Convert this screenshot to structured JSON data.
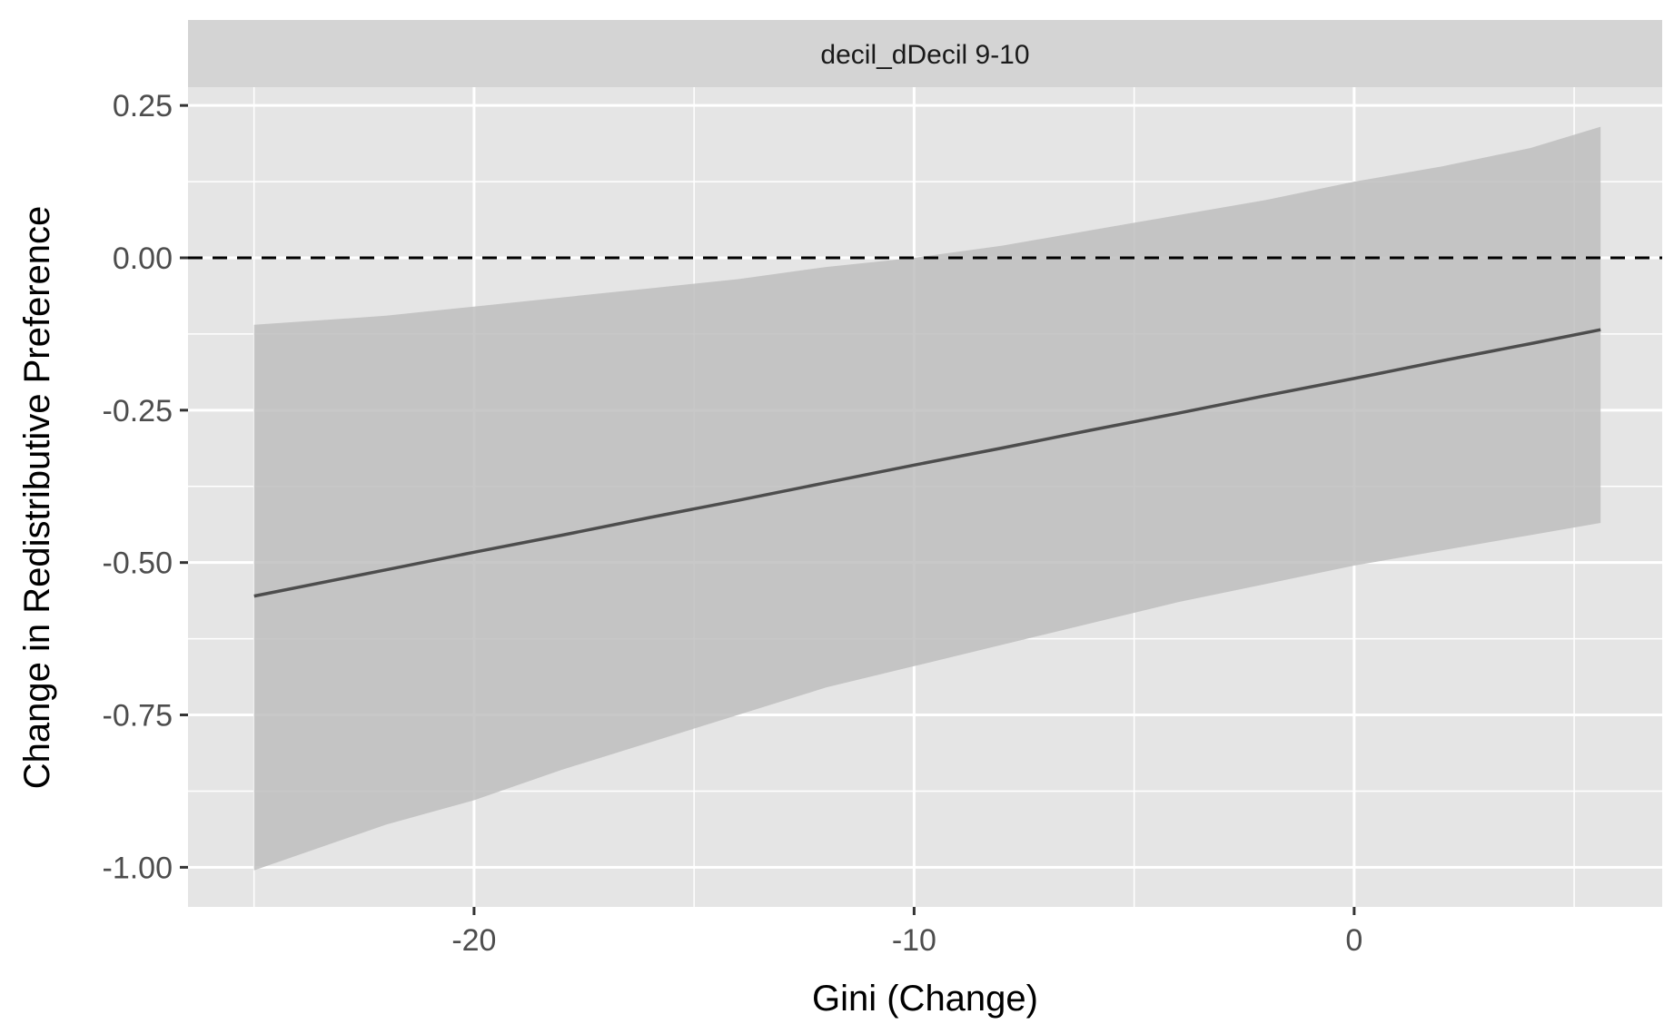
{
  "chart_data": {
    "type": "line",
    "panel_label": "decil_dDecil 9-10",
    "xlabel": "Gini (Change)",
    "ylabel": "Change in Redistributive Preference",
    "xlim": [
      -26.5,
      7
    ],
    "ylim": [
      -1.065,
      0.28
    ],
    "x_ticks": [
      -20,
      -10,
      0
    ],
    "x_tick_labels": [
      "-20",
      "-10",
      "0"
    ],
    "x_minor_ticks": [
      -25,
      -15,
      -5,
      5
    ],
    "y_ticks": [
      0.25,
      0,
      -0.25,
      -0.5,
      -0.75,
      -1.0
    ],
    "y_tick_labels": [
      "0.25",
      "0.00",
      "-0.25",
      "-0.50",
      "-0.75",
      "-1.00"
    ],
    "y_minor_ticks": [
      0.125,
      -0.125,
      -0.375,
      -0.625,
      -0.875
    ],
    "reference_line": {
      "y": 0,
      "style": "dashed"
    },
    "series": [
      {
        "x": [
          -25,
          -22,
          -20,
          -18,
          -16,
          -14,
          -12,
          -10,
          -8,
          -6,
          -4,
          -2,
          0,
          2,
          4,
          5.6
        ],
        "y": [
          -0.555,
          -0.512,
          -0.483,
          -0.455,
          -0.426,
          -0.398,
          -0.369,
          -0.34,
          -0.312,
          -0.283,
          -0.255,
          -0.226,
          -0.198,
          -0.169,
          -0.141,
          -0.118
        ],
        "lower": [
          -1.005,
          -0.93,
          -0.89,
          -0.84,
          -0.795,
          -0.75,
          -0.705,
          -0.67,
          -0.635,
          -0.6,
          -0.565,
          -0.535,
          -0.505,
          -0.48,
          -0.455,
          -0.435
        ],
        "upper": [
          -0.11,
          -0.095,
          -0.08,
          -0.065,
          -0.05,
          -0.035,
          -0.015,
          0.0,
          0.02,
          0.045,
          0.07,
          0.095,
          0.125,
          0.15,
          0.18,
          0.215
        ]
      }
    ],
    "grid": true,
    "colors": {
      "panel_background": "#e5e5e5",
      "strip_background": "#d4d4d4",
      "grid": "#ffffff",
      "ribbon": "#bebebe",
      "line": "#4d4d4d",
      "reference_line": "#000000"
    }
  }
}
